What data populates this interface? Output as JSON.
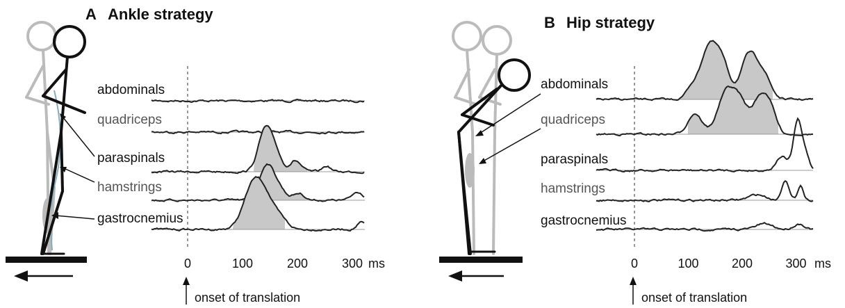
{
  "panels": [
    {
      "letter": "A",
      "title": "Ankle strategy",
      "muscles": [
        "abdominals",
        "quadriceps",
        "paraspinals",
        "hamstrings",
        "gastrocnemius"
      ],
      "ticks": [
        "0",
        "100",
        "200",
        "300"
      ],
      "unit": "ms",
      "annotation": "onset of translation"
    },
    {
      "letter": "B",
      "title": "Hip strategy",
      "muscles": [
        "abdominals",
        "quadriceps",
        "paraspinals",
        "hamstrings",
        "gastrocnemius"
      ],
      "ticks": [
        "0",
        "100",
        "200",
        "300"
      ],
      "unit": "ms",
      "annotation": "onset of translation"
    }
  ]
}
